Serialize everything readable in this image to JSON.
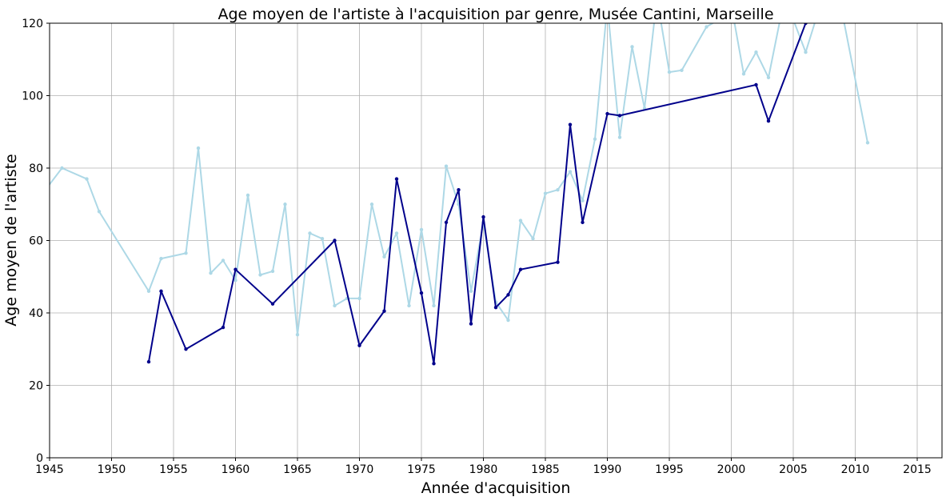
{
  "chart_data": {
    "type": "line",
    "title": "Age moyen de l'artiste à l'acquisition par genre, Musée Cantini, Marseille",
    "xlabel": "Année d'acquisition",
    "ylabel": "Age moyen de l'artiste",
    "xlim": [
      1945,
      2017
    ],
    "ylim": [
      0,
      120
    ],
    "xticks": [
      1945,
      1950,
      1955,
      1960,
      1965,
      1970,
      1975,
      1980,
      1985,
      1990,
      1995,
      2000,
      2005,
      2010,
      2015
    ],
    "yticks": [
      0,
      20,
      40,
      60,
      80,
      100,
      120
    ],
    "grid": true,
    "series": [
      {
        "color": "#add8e6",
        "x": [
          1944,
          1946,
          1948,
          1949,
          1953,
          1954,
          1956,
          1957,
          1958,
          1959,
          1960,
          1961,
          1962,
          1963,
          1964,
          1965,
          1966,
          1967,
          1968,
          1969,
          1970,
          1971,
          1972,
          1973,
          1974,
          1975,
          1976,
          1977,
          1978,
          1979,
          1980,
          1981,
          1982,
          1983,
          1984,
          1985,
          1986,
          1987,
          1988,
          1989,
          1990,
          1991,
          1992,
          1993,
          1994,
          1995,
          1996,
          1998,
          1999,
          2000,
          2001,
          2002,
          2003,
          2004,
          2005,
          2006,
          2007,
          2009,
          2011
        ],
        "values": [
          71,
          80,
          77,
          68,
          46,
          55,
          56.5,
          85.5,
          51,
          54.5,
          49,
          72.5,
          50.5,
          51.5,
          70,
          34,
          62,
          60.5,
          42,
          44,
          44,
          70,
          55.5,
          62,
          42,
          63,
          42,
          80.5,
          70,
          46,
          65,
          43,
          38,
          65.5,
          60.5,
          73,
          74,
          79,
          71,
          88,
          125,
          88.5,
          113.5,
          96.5,
          127,
          106.5,
          107,
          119,
          121,
          125,
          106,
          112,
          105,
          122,
          121,
          112,
          123,
          122,
          87
        ]
      },
      {
        "color": "#00008b",
        "x": [
          1953,
          1954,
          1956,
          1959,
          1960,
          1963,
          1968,
          1970,
          1972,
          1973,
          1975,
          1976,
          1977,
          1978,
          1979,
          1980,
          1981,
          1982,
          1983,
          1986,
          1987,
          1988,
          1990,
          1991,
          2002,
          2003,
          2006
        ],
        "values": [
          26.5,
          46,
          30,
          36,
          52,
          42.5,
          60,
          31,
          40.5,
          77,
          45.5,
          26,
          65,
          74,
          37,
          66.5,
          41.5,
          45,
          52,
          54,
          92,
          65,
          95,
          94.5,
          103,
          93,
          120
        ]
      }
    ]
  }
}
